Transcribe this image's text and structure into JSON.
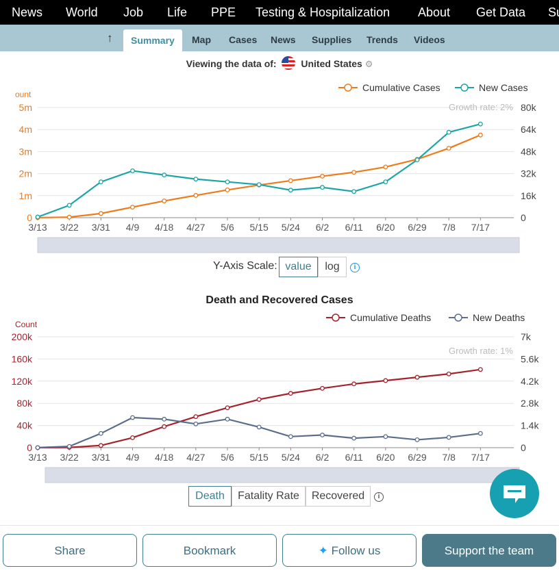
{
  "topnav": {
    "items": [
      "News",
      "World",
      "Job",
      "Life",
      "PPE",
      "Testing & Hospitalization",
      "About",
      "Get Data",
      "Su"
    ]
  },
  "subnav": {
    "up_icon": "arrow-up-icon",
    "tabs": [
      "Summary",
      "Map",
      "Cases",
      "News",
      "Supplies",
      "Trends",
      "Videos"
    ],
    "active": "Summary"
  },
  "viewing": {
    "prefix": "Viewing the data of:",
    "country": "United States",
    "flag_icon": "us-flag-icon",
    "settings_icon": "gear-icon"
  },
  "chart1": {
    "left_axis_title": "ount",
    "legend": [
      "Cumulative Cases",
      "New Cases"
    ],
    "growth_label": "Growth rate: 2%",
    "left_ticks": [
      "0",
      "1m",
      "2m",
      "3m",
      "4m",
      "5m"
    ],
    "right_ticks": [
      "0",
      "16k",
      "32k",
      "48k",
      "64k",
      "80k"
    ]
  },
  "scale": {
    "label": "Y-Axis Scale:",
    "options": [
      "value",
      "log"
    ],
    "selected": "value",
    "info_icon": "info-icon"
  },
  "chart2": {
    "title": "Death and Recovered Cases",
    "left_axis_title": "Count",
    "legend": [
      "Cumulative Deaths",
      "New Deaths"
    ],
    "growth_label": "Growth rate: 1%",
    "left_ticks": [
      "0",
      "40k",
      "80k",
      "120k",
      "160k",
      "200k"
    ],
    "right_ticks": [
      "0",
      "1.4k",
      "2.8k",
      "4.2k",
      "5.6k",
      "7k"
    ]
  },
  "chart2_tabs": {
    "options": [
      "Death",
      "Fatality Rate",
      "Recovered"
    ],
    "selected": "Death",
    "info_icon": "info-icon"
  },
  "chat_icon": "chat-bubble-icon",
  "bottom": {
    "share": "Share",
    "bookmark": "Bookmark",
    "follow": "Follow us",
    "follow_icon": "twitter-icon",
    "support": "Support the team"
  },
  "colors": {
    "cases_orange": "#f07a1a",
    "new_cases_teal": "#1aa6a6",
    "deaths_red": "#a5222d",
    "new_deaths_slate": "#5a6e8c",
    "nav_blue": "#a9c7d3"
  },
  "chart_data": [
    {
      "type": "line",
      "x": [
        "3/13",
        "3/22",
        "3/31",
        "4/9",
        "4/18",
        "4/27",
        "5/6",
        "5/15",
        "5/24",
        "6/2",
        "6/11",
        "6/20",
        "6/29",
        "7/8",
        "7/17"
      ],
      "series": [
        {
          "name": "Cumulative Cases",
          "axis": "left",
          "values": [
            2000,
            25000,
            190000,
            480000,
            760000,
            1010000,
            1260000,
            1480000,
            1680000,
            1880000,
            2060000,
            2300000,
            2650000,
            3150000,
            3750000
          ]
        },
        {
          "name": "New Cases",
          "axis": "right",
          "values": [
            500,
            9000,
            26000,
            34000,
            31000,
            28000,
            26000,
            24000,
            20000,
            22000,
            19000,
            26000,
            42000,
            62000,
            68000
          ]
        }
      ],
      "left_ylim": [
        0,
        5000000
      ],
      "right_ylim": [
        0,
        80000
      ],
      "growth_rate_label": "Growth rate: 2%"
    },
    {
      "type": "line",
      "title": "Death and Recovered Cases",
      "x": [
        "3/13",
        "3/22",
        "3/31",
        "4/9",
        "4/18",
        "4/27",
        "5/6",
        "5/15",
        "5/24",
        "6/2",
        "6/11",
        "6/20",
        "6/29",
        "7/8",
        "7/17"
      ],
      "series": [
        {
          "name": "Cumulative Deaths",
          "axis": "left",
          "values": [
            40,
            500,
            4000,
            18000,
            38000,
            56000,
            72000,
            87000,
            98000,
            107000,
            115000,
            121000,
            127000,
            133000,
            141000
          ]
        },
        {
          "name": "New Deaths",
          "axis": "right",
          "values": [
            5,
            80,
            900,
            1900,
            1800,
            1500,
            1800,
            1300,
            700,
            800,
            600,
            700,
            500,
            650,
            900
          ]
        }
      ],
      "left_ylim": [
        0,
        200000
      ],
      "right_ylim": [
        0,
        7000
      ],
      "growth_rate_label": "Growth rate: 1%"
    }
  ]
}
